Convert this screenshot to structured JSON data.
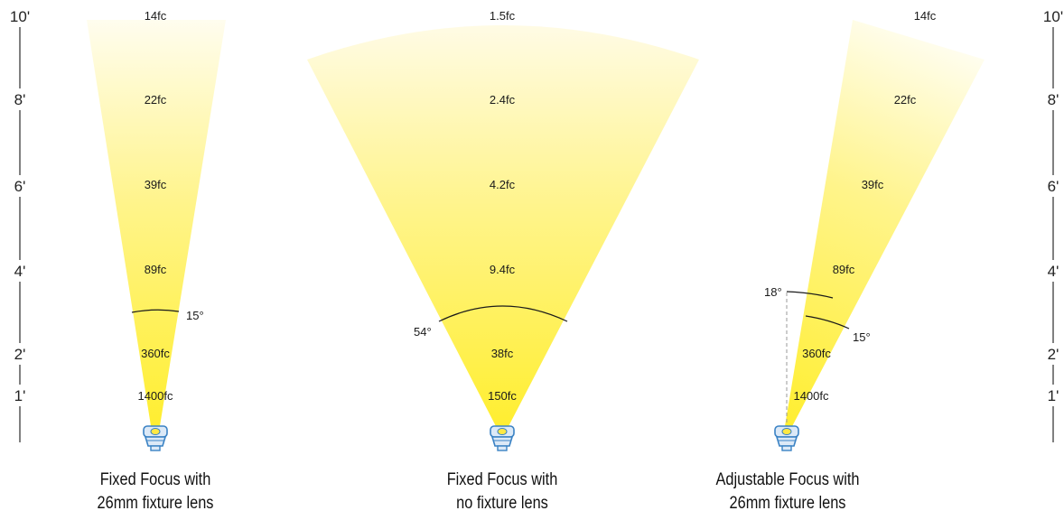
{
  "scale": {
    "labels": [
      "10'",
      "8'",
      "6'",
      "4'",
      "2'",
      "1'"
    ],
    "color": "#000000"
  },
  "colors": {
    "beam_bright": "#ffee2e",
    "beam_fade": "#ffffff",
    "arc": "#1a1a1a",
    "fixture_blue": "#3a82c4",
    "fixture_light": "#dce9f7",
    "fixture_yellow": "#ffe844"
  },
  "icons": {
    "fixture": "mr16-lamp-icon"
  },
  "beams": [
    {
      "caption_line1": "Fixed Focus with",
      "caption_line2": "26mm fixture lens",
      "footcandles": [
        "14fc",
        "22fc",
        "39fc",
        "89fc",
        "360fc",
        "1400fc"
      ],
      "angles": [
        "15°"
      ]
    },
    {
      "caption_line1": "Fixed Focus with",
      "caption_line2": "no fixture lens",
      "footcandles": [
        "1.5fc",
        "2.4fc",
        "4.2fc",
        "9.4fc",
        "38fc",
        "150fc"
      ],
      "angles": [
        "54°"
      ]
    },
    {
      "caption_line1": "Adjustable Focus with",
      "caption_line2": "26mm fixture lens",
      "footcandles": [
        "14fc",
        "22fc",
        "39fc",
        "89fc",
        "360fc",
        "1400fc"
      ],
      "angles": [
        "18°",
        "15°"
      ]
    }
  ]
}
